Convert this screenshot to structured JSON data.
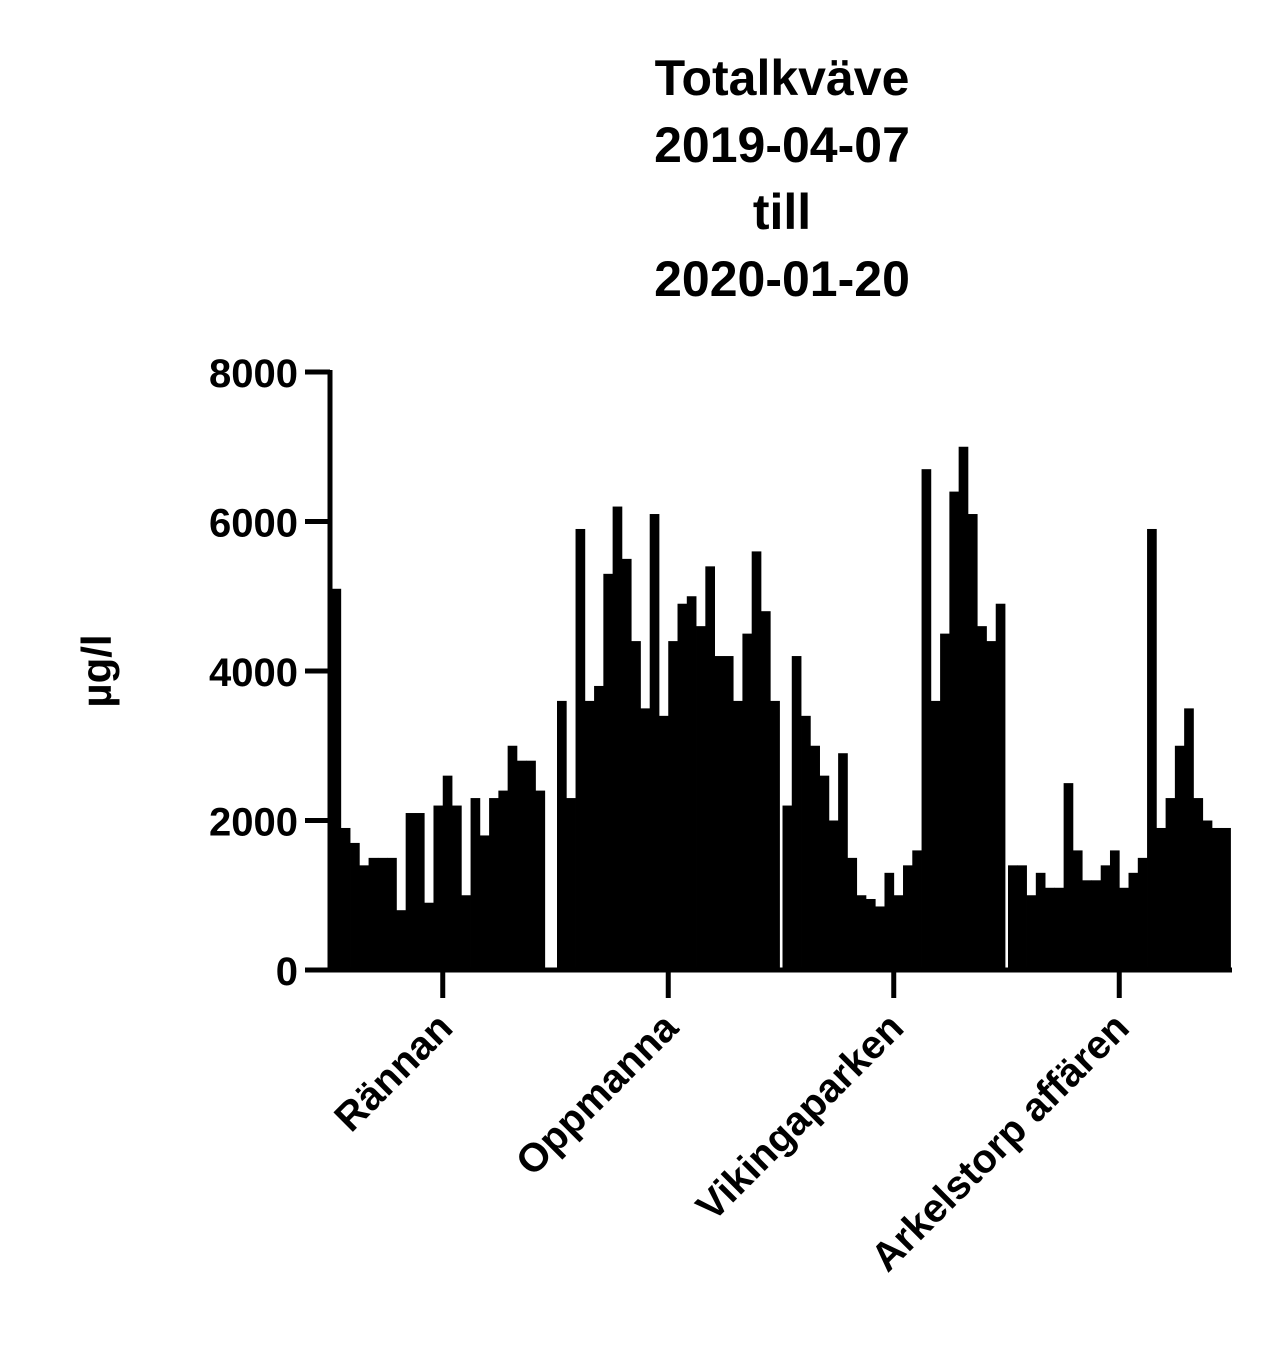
{
  "chart_data": {
    "type": "bar",
    "title": [
      "Totalkväve",
      "2019-04-07",
      "till",
      "2020-01-20"
    ],
    "y_label": "µg/l",
    "categories": [
      "Rännan",
      "Oppmanna",
      "Vikingaparken",
      "Arkelstorp affären"
    ],
    "values": [
      [
        5100,
        1900,
        1700,
        1400,
        1500,
        1500,
        1500,
        800,
        2100,
        2100,
        900,
        2200,
        2600,
        2200,
        1000,
        2300,
        1800,
        2300,
        2400,
        3000,
        2800,
        2800,
        2400,
        null
      ],
      [
        3600,
        2300,
        5900,
        3600,
        3800,
        5300,
        6200,
        5500,
        4400,
        3500,
        6100,
        3400,
        4400,
        4900,
        5000,
        4600,
        5400,
        4200,
        4200,
        3600,
        4500,
        5600,
        4800,
        3600
      ],
      [
        2200,
        4200,
        3400,
        3000,
        2600,
        2000,
        2900,
        1500,
        1000,
        950,
        850,
        1300,
        1000,
        1400,
        1600,
        6700,
        3600,
        4500,
        6400,
        7000,
        6100,
        4600,
        4400,
        4900
      ],
      [
        1400,
        1400,
        1000,
        1300,
        1100,
        1100,
        2500,
        1600,
        1200,
        1200,
        1400,
        1600,
        1100,
        1300,
        1500,
        5900,
        1900,
        2300,
        3000,
        3500,
        2300,
        2000,
        1900,
        1900
      ]
    ],
    "color": "#000000",
    "ylim": [
      0,
      8000
    ],
    "yticks": [
      0,
      2000,
      4000,
      6000,
      8000
    ]
  }
}
